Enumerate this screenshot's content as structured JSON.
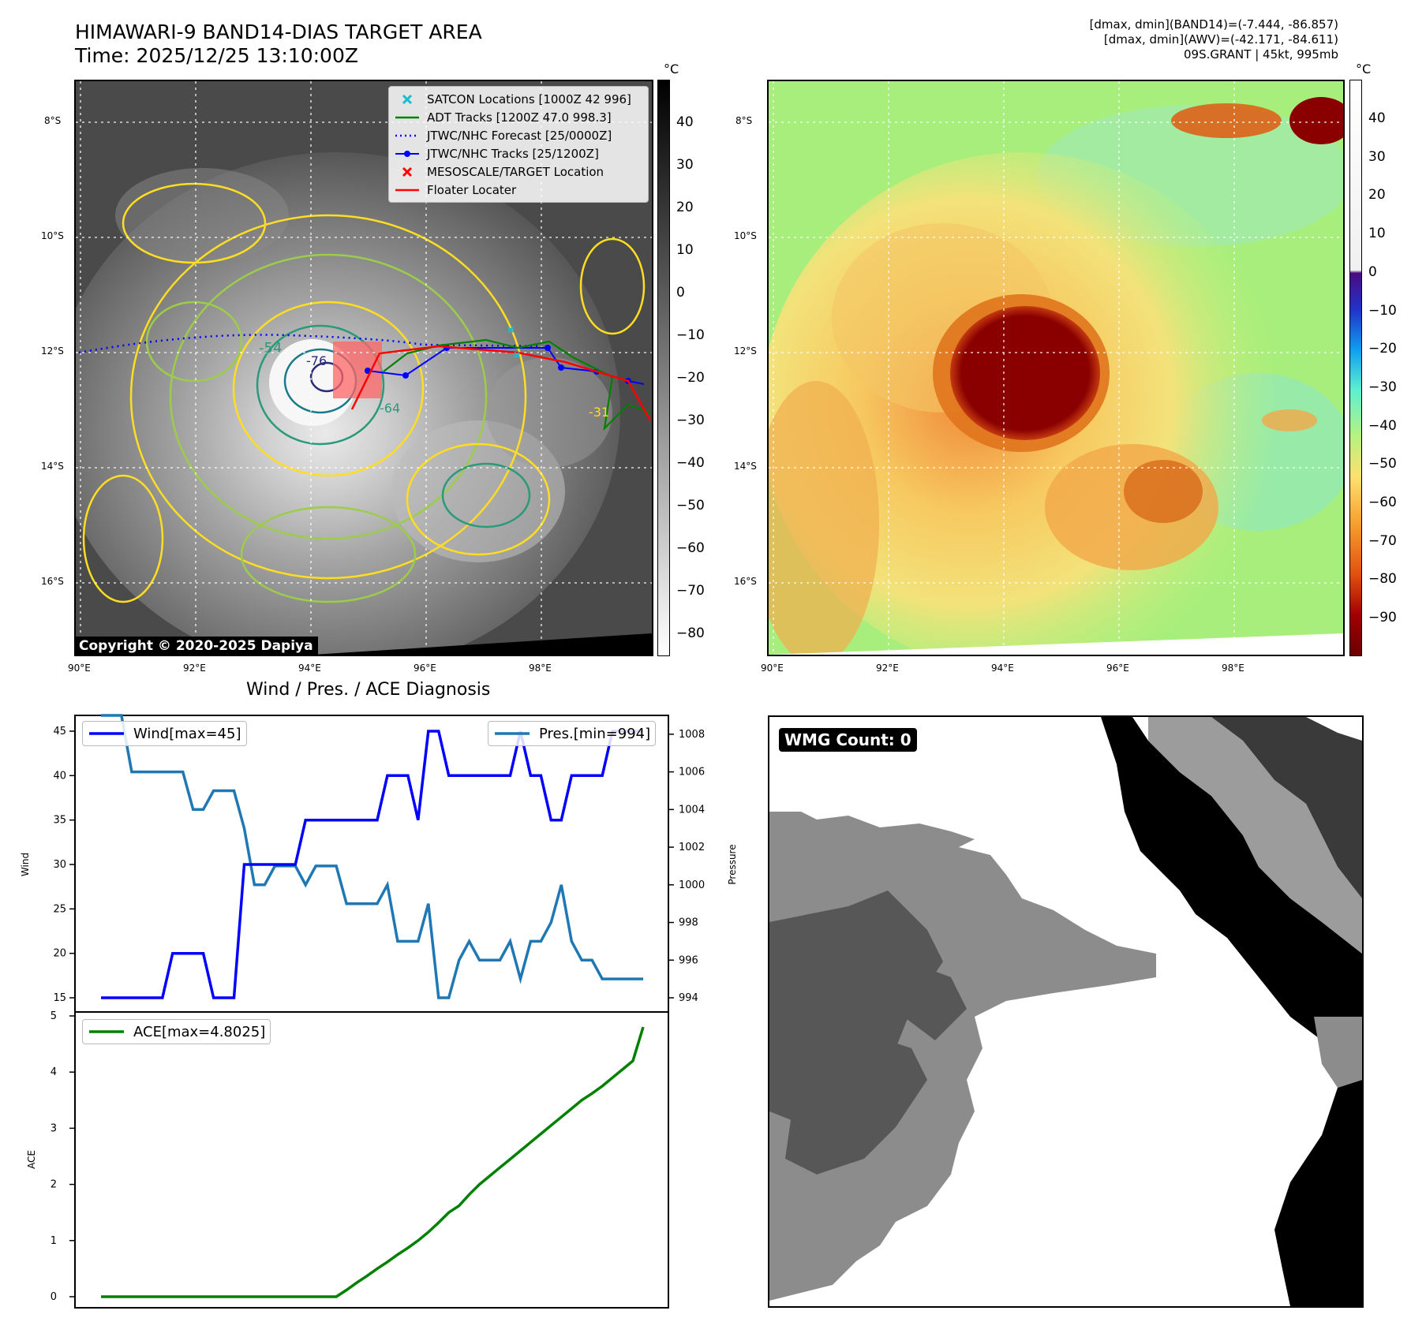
{
  "header": {
    "title_line1": "HIMAWARI-9 BAND14-DIAS TARGET AREA",
    "title_line2": "Time: 2025/12/25 13:10:00Z",
    "info_line1": "[dmax, dmin](BAND14)=(-7.444, -86.857)",
    "info_line2": "[dmax, dmin](AWV)=(-42.171, -84.611)",
    "info_line3": "09S.GRANT | 45kt, 995mb"
  },
  "map": {
    "lat_labels": [
      "8°S",
      "10°S",
      "12°S",
      "14°S",
      "16°S"
    ],
    "lon_labels": [
      "90°E",
      "92°E",
      "94°E",
      "96°E",
      "98°E"
    ],
    "copyright": "Copyright © 2020-2025 Dapiya",
    "contour_labels": [
      "-54",
      "-76",
      "-64",
      "-31"
    ]
  },
  "colorbar_gray": {
    "unit": "°C",
    "ticks": [
      "40",
      "30",
      "20",
      "10",
      "0",
      "−10",
      "−20",
      "−30",
      "−40",
      "−50",
      "−60",
      "−70",
      "−80"
    ]
  },
  "colorbar_color": {
    "unit": "°C",
    "ticks": [
      "40",
      "30",
      "20",
      "10",
      "0",
      "−10",
      "−20",
      "−30",
      "−40",
      "−50",
      "−60",
      "−70",
      "−80",
      "−90"
    ]
  },
  "legend": {
    "items": [
      {
        "label": "SATCON Locations [1000Z 42 996]",
        "color": "#17becf",
        "marker": "x"
      },
      {
        "label": "ADT Tracks [1200Z 47.0 998.3]",
        "color": "#008000",
        "marker": "line"
      },
      {
        "label": "JTWC/NHC Forecast [25/0000Z]",
        "color": "#0000ff",
        "marker": "dotted"
      },
      {
        "label": "JTWC/NHC Tracks [25/1200Z]",
        "color": "#0000ff",
        "marker": "line-dot"
      },
      {
        "label": "MESOSCALE/TARGET Location",
        "color": "#ff0000",
        "marker": "x"
      },
      {
        "label": "Floater Locater",
        "color": "#ff0000",
        "marker": "line"
      }
    ]
  },
  "diagnosis": {
    "title": "Wind / Pres. / ACE Diagnosis",
    "wind_legend": "Wind[max=45]",
    "pres_legend": "Pres.[min=994]",
    "ace_legend": "ACE[max=4.8025]",
    "wind_axis_label": "Wind",
    "pres_axis_label": "Pressure",
    "ace_axis_label": "ACE"
  },
  "wmg": {
    "label": "WMG Count: 0"
  },
  "chart_data": [
    {
      "type": "line",
      "title": "Wind / Pres. / ACE Diagnosis",
      "series": [
        {
          "name": "Wind[max=45]",
          "axis": "left",
          "color": "#0000ff",
          "values": [
            15,
            15,
            15,
            15,
            15,
            15,
            15,
            20,
            20,
            20,
            20,
            15,
            15,
            15,
            30,
            30,
            30,
            30,
            30,
            30,
            35,
            35,
            35,
            35,
            35,
            35,
            35,
            35,
            40,
            40,
            40,
            35,
            45,
            45,
            40,
            40,
            40,
            40,
            40,
            40,
            40,
            45,
            40,
            40,
            35,
            35,
            40,
            40,
            40,
            40,
            45,
            45,
            45,
            45
          ]
        },
        {
          "name": "Pres.[min=994]",
          "axis": "right",
          "color": "#1f77b4",
          "values": [
            1009,
            1009,
            1009,
            1006,
            1006,
            1006,
            1006,
            1006,
            1006,
            1004,
            1004,
            1005,
            1005,
            1005,
            1003,
            1000,
            1000,
            1001,
            1001,
            1001,
            1000,
            1001,
            1001,
            1001,
            999,
            999,
            999,
            999,
            1000,
            997,
            997,
            997,
            999,
            994,
            994,
            996,
            997,
            996,
            996,
            996,
            997,
            995,
            997,
            997,
            998,
            1000,
            997,
            996,
            996,
            995,
            995,
            995,
            995,
            995
          ]
        }
      ],
      "ylim_left": [
        15,
        45
      ],
      "left_ticks": [
        15,
        20,
        25,
        30,
        35,
        40,
        45
      ],
      "ylim_right": [
        994,
        1009
      ],
      "right_ticks": [
        994,
        996,
        998,
        1000,
        1002,
        1004,
        1006,
        1008
      ],
      "ylabel_left": "Wind",
      "ylabel_right": "Pressure"
    },
    {
      "type": "line",
      "series": [
        {
          "name": "ACE[max=4.8025]",
          "color": "#008000",
          "values": [
            0,
            0,
            0,
            0,
            0,
            0,
            0,
            0,
            0,
            0,
            0,
            0,
            0,
            0,
            0,
            0,
            0,
            0,
            0,
            0,
            0,
            0,
            0,
            0,
            0.12,
            0.25,
            0.37,
            0.5,
            0.62,
            0.75,
            0.87,
            1.0,
            1.15,
            1.32,
            1.5,
            1.62,
            1.82,
            2.0,
            2.15,
            2.3,
            2.45,
            2.6,
            2.75,
            2.9,
            3.05,
            3.2,
            3.35,
            3.5,
            3.62,
            3.75,
            3.9,
            4.05,
            4.2,
            4.8025
          ]
        }
      ],
      "ylim": [
        0,
        5
      ],
      "yticks": [
        0,
        1,
        2,
        3,
        4,
        5
      ],
      "ylabel": "ACE"
    }
  ]
}
